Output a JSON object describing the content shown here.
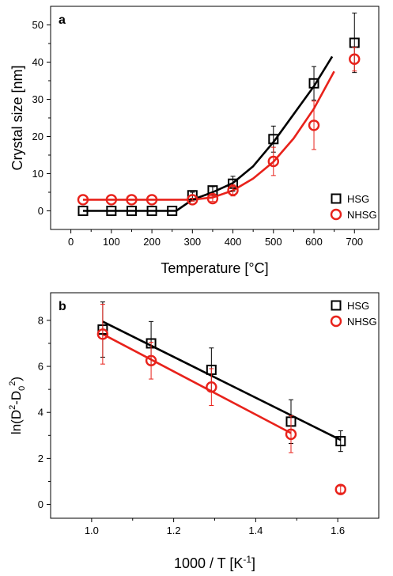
{
  "chart_data": [
    {
      "type": "scatter",
      "panel_label": "a",
      "xlabel": "Temperature [°C]",
      "ylabel": "Crystal size [nm]",
      "xlim": [
        -50,
        760
      ],
      "ylim": [
        -5,
        55
      ],
      "xticks": [
        0,
        100,
        200,
        300,
        400,
        500,
        600,
        700
      ],
      "yticks": [
        0,
        10,
        20,
        30,
        40,
        50
      ],
      "legend_position": "bottom-right",
      "series": [
        {
          "name": "HSG",
          "color": "#000000",
          "marker": "square",
          "x": [
            30,
            100,
            150,
            200,
            250,
            300,
            350,
            400,
            500,
            600,
            700
          ],
          "y": [
            0,
            0,
            0,
            0,
            0,
            4.2,
            5.5,
            7.3,
            19.3,
            34.3,
            45.2
          ],
          "err": [
            0,
            0,
            0,
            0,
            0,
            0.8,
            1.0,
            2.0,
            3.5,
            4.5,
            8.0
          ],
          "fit": [
            [
              30,
              0
            ],
            [
              260,
              0
            ],
            [
              300,
              3
            ],
            [
              350,
              5
            ],
            [
              400,
              7.5
            ],
            [
              450,
              12
            ],
            [
              500,
              18.5
            ],
            [
              550,
              26
            ],
            [
              600,
              33.5
            ],
            [
              645,
              41.5
            ]
          ]
        },
        {
          "name": "NHSG",
          "color": "#e8221b",
          "marker": "circle",
          "x": [
            30,
            100,
            150,
            200,
            300,
            350,
            400,
            500,
            600,
            700
          ],
          "y": [
            3,
            3,
            3,
            3,
            3,
            3.3,
            5.5,
            13.3,
            23,
            40.8
          ],
          "err": [
            0,
            0,
            0,
            0,
            0.4,
            0.8,
            1.5,
            3.8,
            6.5,
            3.2
          ],
          "fit": [
            [
              30,
              3
            ],
            [
              300,
              3
            ],
            [
              350,
              3.6
            ],
            [
              400,
              5.5
            ],
            [
              450,
              8.7
            ],
            [
              500,
              13.2
            ],
            [
              550,
              19.5
            ],
            [
              600,
              27.5
            ],
            [
              650,
              37.5
            ]
          ]
        }
      ]
    },
    {
      "type": "scatter",
      "panel_label": "b",
      "xlabel_main": "1000 / T [K",
      "xlabel_sup": "-1",
      "xlabel_end": "]",
      "ylabel_parts": [
        "ln(D",
        "2",
        "-D",
        "0",
        "2",
        ")"
      ],
      "xlim": [
        0.9,
        1.7
      ],
      "ylim": [
        -0.6,
        9.2
      ],
      "xticks": [
        1.0,
        1.2,
        1.4,
        1.6
      ],
      "yticks": [
        0,
        2,
        4,
        6,
        8
      ],
      "legend_position": "top-right",
      "series": [
        {
          "name": "HSG",
          "color": "#000000",
          "marker": "square",
          "x": [
            1.027,
            1.145,
            1.292,
            1.486,
            1.607
          ],
          "y": [
            7.6,
            7.0,
            5.85,
            3.6,
            2.75
          ],
          "err": [
            1.2,
            0.95,
            0.95,
            0.95,
            0.45
          ],
          "fit": [
            [
              1.027,
              7.95
            ],
            [
              1.607,
              2.8
            ]
          ]
        },
        {
          "name": "NHSG",
          "color": "#e8221b",
          "marker": "circle",
          "x": [
            1.027,
            1.145,
            1.292,
            1.486,
            1.607
          ],
          "y": [
            7.4,
            6.25,
            5.1,
            3.05,
            0.65
          ],
          "err": [
            1.3,
            0.8,
            0.8,
            0.8,
            0.15
          ],
          "fit": [
            [
              1.027,
              7.4
            ],
            [
              1.486,
              3.1
            ]
          ]
        }
      ]
    }
  ]
}
